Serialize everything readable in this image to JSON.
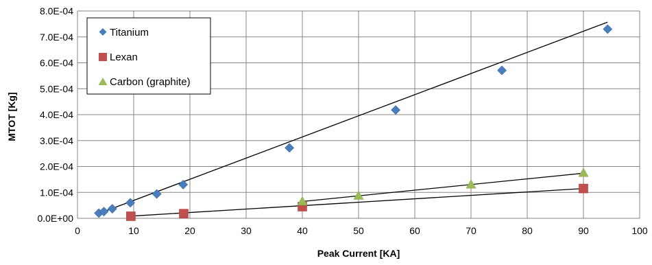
{
  "chart_data": {
    "type": "scatter",
    "title": "",
    "xlabel": "Peak Current [KA]",
    "ylabel": "MTOT [Kg]",
    "xlim": [
      0,
      100
    ],
    "ylim": [
      0,
      0.0008
    ],
    "x_ticks": [
      0,
      10,
      20,
      30,
      40,
      50,
      60,
      70,
      80,
      90,
      100
    ],
    "y_ticks": [
      0,
      0.0001,
      0.0002,
      0.0003,
      0.0004,
      0.0005,
      0.0006,
      0.0007,
      0.0008
    ],
    "x_tick_labels": [
      "0",
      "10",
      "20",
      "30",
      "40",
      "50",
      "60",
      "70",
      "80",
      "90",
      "100"
    ],
    "y_tick_labels": [
      "0.0E+00",
      "1.0E-04",
      "2.0E-04",
      "3.0E-04",
      "4.0E-04",
      "5.0E-04",
      "6.0E-04",
      "7.0E-04",
      "8.0E-04"
    ],
    "grid": true,
    "legend_position": "top-left",
    "series": [
      {
        "name": "Titanium",
        "marker": "diamond",
        "color": "#4a7ebb",
        "x": [
          3.8,
          4.7,
          6.2,
          9.4,
          14.1,
          18.8,
          37.7,
          56.6,
          75.5,
          94.3
        ],
        "y": [
          2e-05,
          2.6e-05,
          3.7e-05,
          6e-05,
          9.4e-05,
          0.00013,
          0.000272,
          0.000418,
          0.000571,
          0.00073
        ],
        "trendline": {
          "x": [
            3.8,
            94.3
          ],
          "y": [
            1.85e-05,
            0.000757
          ]
        }
      },
      {
        "name": "Lexan",
        "marker": "square",
        "color": "#c0504d",
        "x": [
          9.5,
          18.9,
          40,
          90
        ],
        "y": [
          8e-06,
          1.8e-05,
          4.5e-05,
          0.000115
        ],
        "trendline": {
          "x": [
            9.5,
            90
          ],
          "y": [
            8.5e-06,
            0.000115
          ]
        }
      },
      {
        "name": "Carbon (graphite)",
        "marker": "triangle",
        "color": "#9bbb59",
        "x": [
          40,
          50,
          70,
          90
        ],
        "y": [
          6.5e-05,
          8.7e-05,
          0.00013,
          0.000175
        ],
        "trendline": {
          "x": [
            40,
            90
          ],
          "y": [
            6.5e-05,
            0.000174
          ]
        }
      }
    ]
  }
}
